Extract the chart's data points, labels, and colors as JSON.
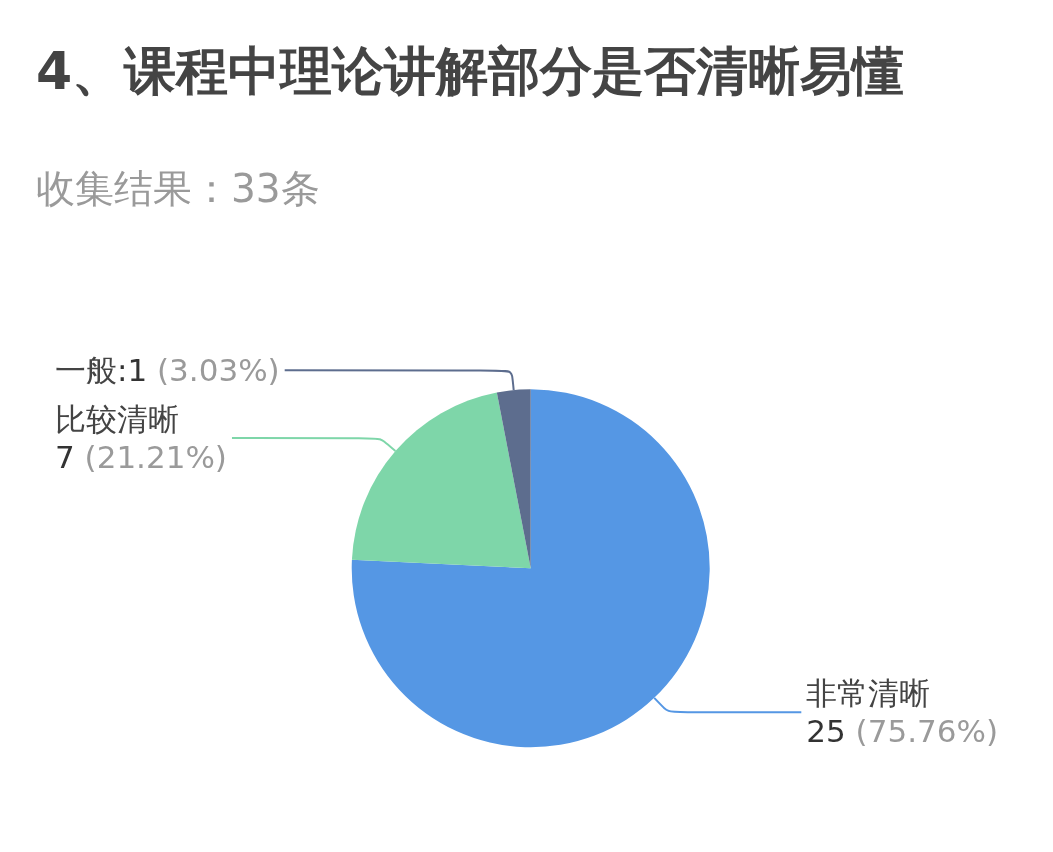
{
  "chart_data": {
    "type": "pie",
    "title": "4、课程中理论讲解部分是否清晰易懂",
    "subtitle": "收集结果：33条",
    "categories": [
      "非常清晰",
      "比较清晰",
      "一般"
    ],
    "values": [
      25,
      7,
      1
    ],
    "colors": [
      "#5597e4",
      "#7ed6a9",
      "#5d6d8e"
    ],
    "value_labels": [
      "25 (75.76%)",
      "7 (21.21%)",
      ":1 (3.03%)"
    ]
  }
}
